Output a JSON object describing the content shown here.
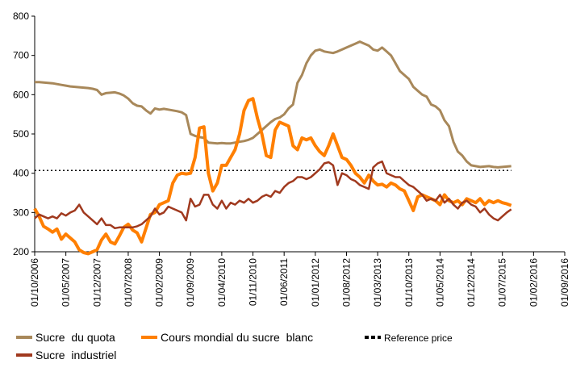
{
  "chart_data": {
    "type": "line",
    "categories": [
      "01/10/2006",
      null,
      null,
      null,
      null,
      null,
      null,
      "01/05/2007",
      null,
      null,
      null,
      null,
      null,
      null,
      "01/12/2007",
      null,
      null,
      null,
      null,
      null,
      null,
      "01/07/2008",
      null,
      null,
      null,
      null,
      null,
      null,
      "01/02/2009",
      null,
      null,
      null,
      null,
      null,
      null,
      "01/09/2009",
      null,
      null,
      null,
      null,
      null,
      null,
      "01/04/2010",
      null,
      null,
      null,
      null,
      null,
      null,
      "01/11/2010",
      null,
      null,
      null,
      null,
      null,
      null,
      "01/06/2011",
      null,
      null,
      null,
      null,
      null,
      null,
      "01/01/2012",
      null,
      null,
      null,
      null,
      null,
      null,
      "01/08/2012",
      null,
      null,
      null,
      null,
      null,
      null,
      "01/03/2013",
      null,
      null,
      null,
      null,
      null,
      null,
      "01/10/2013",
      null,
      null,
      null,
      null,
      null,
      null,
      "01/05/2014",
      null,
      null,
      null,
      null,
      null,
      null,
      "01/12/2014",
      null,
      null,
      null,
      null,
      null,
      null,
      "01/07/2015",
      null,
      null,
      null,
      null,
      null,
      null,
      "01/02/2016",
      null,
      null,
      null,
      null,
      null,
      null,
      "01/09/2016"
    ],
    "series": [
      {
        "name": "Sucre  du quota",
        "color": "#a8885a",
        "width": 3,
        "values": [
          632,
          632,
          631,
          630,
          629,
          627,
          625,
          623,
          621,
          620,
          619,
          618,
          617,
          615,
          612,
          600,
          604,
          605,
          606,
          603,
          598,
          590,
          578,
          572,
          570,
          560,
          552,
          565,
          562,
          564,
          562,
          560,
          558,
          555,
          548,
          500,
          495,
          492,
          490,
          478,
          477,
          476,
          477,
          476,
          476,
          478,
          480,
          482,
          485,
          490,
          500,
          510,
          520,
          530,
          538,
          542,
          550,
          565,
          575,
          630,
          650,
          680,
          700,
          712,
          715,
          710,
          708,
          706,
          710,
          715,
          720,
          725,
          730,
          735,
          730,
          725,
          715,
          712,
          720,
          710,
          700,
          680,
          660,
          650,
          640,
          620,
          610,
          600,
          595,
          575,
          570,
          560,
          535,
          520,
          480,
          455,
          445,
          430,
          420,
          418,
          416,
          417,
          418,
          416,
          415,
          416,
          417,
          418,
          null,
          null,
          null,
          null,
          null,
          null,
          null,
          null,
          null,
          null,
          null,
          null
        ]
      },
      {
        "name": "Cours mondial du sucre  blanc",
        "color": "#ff7f00",
        "width": 4,
        "values": [
          310,
          290,
          265,
          258,
          250,
          258,
          232,
          245,
          235,
          225,
          205,
          198,
          195,
          200,
          205,
          230,
          245,
          225,
          220,
          240,
          262,
          270,
          255,
          248,
          225,
          260,
          295,
          300,
          320,
          325,
          330,
          375,
          395,
          400,
          398,
          400,
          440,
          515,
          518,
          400,
          355,
          375,
          420,
          420,
          440,
          460,
          500,
          560,
          585,
          590,
          540,
          500,
          445,
          440,
          510,
          530,
          525,
          520,
          470,
          460,
          490,
          485,
          490,
          470,
          455,
          445,
          470,
          500,
          470,
          440,
          435,
          420,
          400,
          390,
          375,
          395,
          380,
          370,
          372,
          365,
          375,
          370,
          360,
          355,
          330,
          305,
          340,
          345,
          340,
          335,
          330,
          320,
          345,
          330,
          325,
          330,
          320,
          335,
          330,
          325,
          335,
          320,
          330,
          325,
          330,
          325,
          322,
          318,
          null,
          null,
          null,
          null,
          null,
          null,
          null,
          null,
          null,
          null,
          null,
          null
        ]
      },
      {
        "name": "Sucre  industriel",
        "color": "#a0391e",
        "width": 2.5,
        "values": [
          285,
          295,
          290,
          285,
          290,
          285,
          298,
          292,
          300,
          305,
          320,
          300,
          290,
          280,
          270,
          285,
          268,
          268,
          260,
          262,
          262,
          262,
          262,
          265,
          270,
          280,
          290,
          310,
          295,
          300,
          315,
          310,
          305,
          300,
          280,
          335,
          315,
          320,
          345,
          345,
          320,
          310,
          330,
          310,
          325,
          320,
          330,
          325,
          335,
          325,
          330,
          340,
          345,
          340,
          355,
          350,
          365,
          375,
          380,
          390,
          390,
          385,
          390,
          400,
          410,
          425,
          428,
          420,
          370,
          400,
          395,
          385,
          380,
          370,
          365,
          360,
          415,
          425,
          430,
          400,
          395,
          390,
          390,
          380,
          370,
          365,
          355,
          345,
          330,
          335,
          330,
          345,
          325,
          335,
          320,
          310,
          325,
          330,
          320,
          315,
          300,
          310,
          295,
          285,
          280,
          290,
          300,
          308,
          null,
          null,
          null,
          null,
          null,
          null,
          null,
          null,
          null,
          null,
          null,
          null
        ]
      }
    ],
    "reference_price": {
      "name": "Reference price",
      "value": 407,
      "color": "#000000"
    },
    "ylim": [
      200,
      800
    ],
    "yticks": [
      200,
      300,
      400,
      500,
      600,
      700,
      800
    ]
  }
}
